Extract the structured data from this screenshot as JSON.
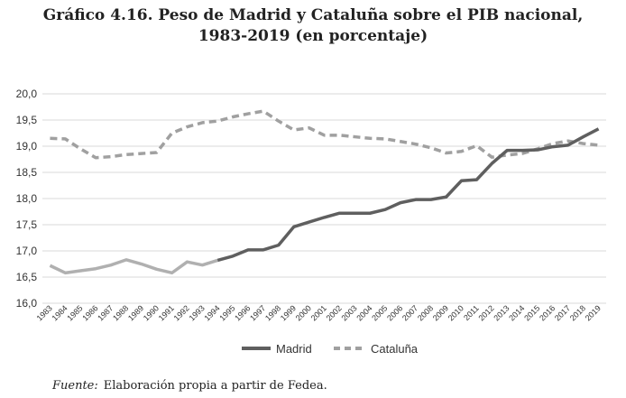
{
  "title": {
    "line1": "Gráfico 4.16.  Peso de Madrid y Cataluña sobre el PIB nacional,",
    "line2": "1983-2019 (en porcentaje)"
  },
  "source": {
    "label": "Fuente:",
    "text": "Elaboración propia a partir de Fedea."
  },
  "chart_data": {
    "type": "line",
    "x": [
      "1983",
      "1984",
      "1985",
      "1986",
      "1987",
      "1988",
      "1989",
      "1990",
      "1991",
      "1992",
      "1993",
      "1994",
      "1995",
      "1996",
      "1997",
      "1998",
      "1999",
      "2000",
      "2001",
      "2002",
      "2003",
      "2004",
      "2005",
      "2006",
      "2007",
      "2008",
      "2009",
      "2010",
      "2011",
      "2012",
      "2013",
      "2014",
      "2015",
      "2016",
      "2017",
      "2018",
      "2019"
    ],
    "ylim": [
      16.0,
      20.0
    ],
    "yticks": [
      16.0,
      16.5,
      17.0,
      17.5,
      18.0,
      18.5,
      19.0,
      19.5,
      20.0
    ],
    "ytick_labels": [
      "16,0",
      "16,5",
      "17,0",
      "17,5",
      "18,0",
      "18,5",
      "19,0",
      "19,5",
      "20,0"
    ],
    "grid": "horizontal",
    "legend_position": "bottom",
    "series": [
      {
        "name": "Madrid",
        "style": "solid",
        "color": "#5f5f5f",
        "color_early": "#b0b0b0",
        "values": [
          16.72,
          16.58,
          16.62,
          16.66,
          16.73,
          16.83,
          16.75,
          16.65,
          16.58,
          16.79,
          16.73,
          16.82,
          16.9,
          17.02,
          17.02,
          17.11,
          17.46,
          17.55,
          17.64,
          17.72,
          17.72,
          17.72,
          17.79,
          17.92,
          17.98,
          17.98,
          18.03,
          18.34,
          18.36,
          18.67,
          18.92,
          18.92,
          18.93,
          18.99,
          19.02,
          19.18,
          19.33
        ]
      },
      {
        "name": "Cataluña",
        "style": "dashed",
        "color": "#a0a0a0",
        "values": [
          19.15,
          19.14,
          18.95,
          18.78,
          18.8,
          18.84,
          18.86,
          18.88,
          19.25,
          19.37,
          19.45,
          19.48,
          19.56,
          19.62,
          19.67,
          19.48,
          19.31,
          19.35,
          19.21,
          19.21,
          19.18,
          19.15,
          19.14,
          19.09,
          19.04,
          18.97,
          18.87,
          18.9,
          19.01,
          18.79,
          18.83,
          18.86,
          18.95,
          19.05,
          19.1,
          19.05,
          19.02
        ]
      }
    ]
  }
}
